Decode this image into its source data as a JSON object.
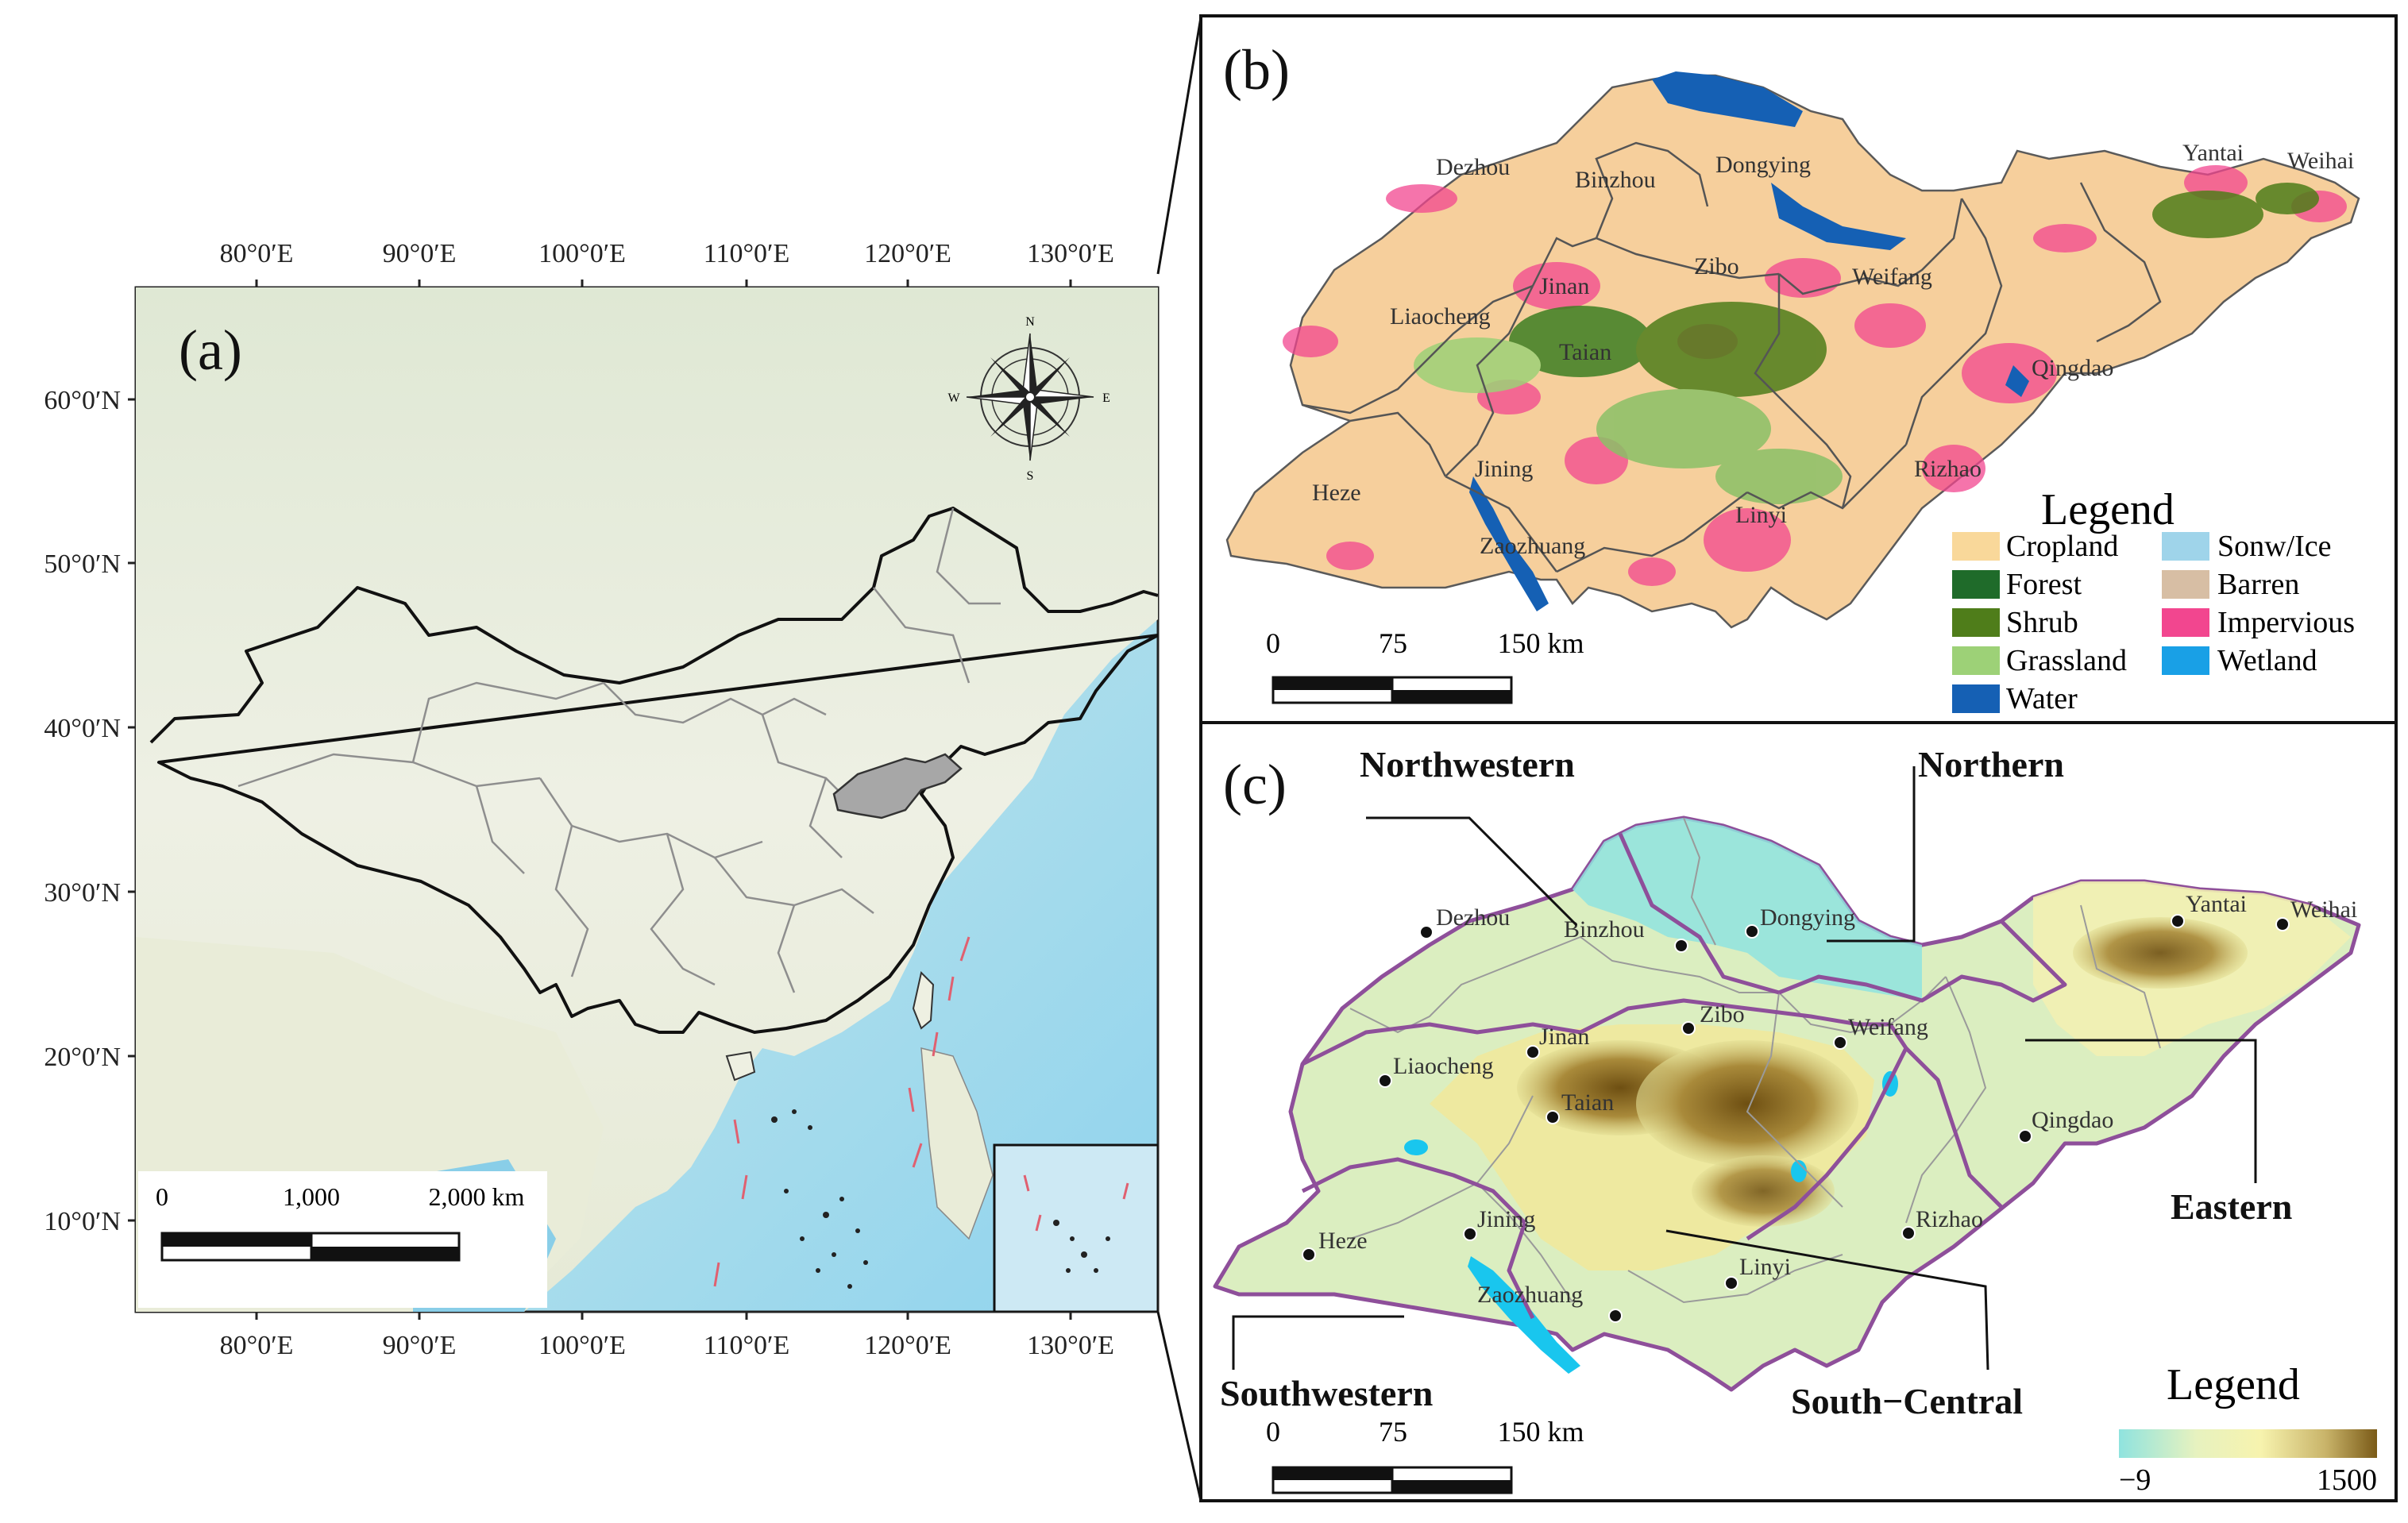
{
  "panel_a": {
    "label": "(a)",
    "lon_ticks": [
      "80°0′E",
      "90°0′E",
      "100°0′E",
      "110°0′E",
      "120°0′E",
      "130°0′E"
    ],
    "lat_ticks": [
      "60°0′N",
      "50°0′N",
      "40°0′N",
      "30°0′N",
      "20°0′N",
      "10°0′N"
    ],
    "compass": {
      "n": "N",
      "s": "S",
      "e": "E",
      "w": "W"
    },
    "scalebar": {
      "labels": [
        "0",
        "1,000",
        "2,000 km"
      ]
    },
    "highlight_region": "Shandong"
  },
  "panel_b": {
    "label": "(b)",
    "cities": [
      "Dezhou",
      "Binzhou",
      "Dongying",
      "Yantai",
      "Weihai",
      "Jinan",
      "Zibo",
      "Weifang",
      "Liaocheng",
      "Taian",
      "Qingdao",
      "Heze",
      "Jining",
      "Rizhao",
      "Linyi",
      "Zaozhuang"
    ],
    "legend_title": "Legend",
    "legend": [
      {
        "label": "Cropland",
        "color": "#f9d89a"
      },
      {
        "label": "Forest",
        "color": "#1f6b2a"
      },
      {
        "label": "Shrub",
        "color": "#4f7d1a"
      },
      {
        "label": "Grassland",
        "color": "#9dd177"
      },
      {
        "label": "Water",
        "color": "#1560b4"
      },
      {
        "label": "Sonw/Ice",
        "color": "#9fd4ea"
      },
      {
        "label": "Barren",
        "color": "#d7bea4"
      },
      {
        "label": "Impervious",
        "color": "#f2468f"
      },
      {
        "label": "Wetland",
        "color": "#19a0e6"
      }
    ],
    "scalebar": {
      "labels": [
        "0",
        "75",
        "150 km"
      ]
    }
  },
  "panel_c": {
    "label": "(c)",
    "cities": [
      "Dezhou",
      "Binzhou",
      "Dongying",
      "Yantai",
      "Weihai",
      "Jinan",
      "Zibo",
      "Weifang",
      "Liaocheng",
      "Taian",
      "Qingdao",
      "Heze",
      "Jining",
      "Rizhao",
      "Linyi",
      "Zaozhuang"
    ],
    "regions": [
      "Northwestern",
      "Northern",
      "Eastern",
      "Southwestern",
      "South−Central"
    ],
    "legend_title": "Legend",
    "legend_min": "−9",
    "legend_max": "1500",
    "ramp_colors": [
      "#8fe3df",
      "#e7f2bf",
      "#f7f3ae",
      "#c9b46a",
      "#7a5a17"
    ],
    "scalebar": {
      "labels": [
        "0",
        "75",
        "150 km"
      ]
    }
  }
}
